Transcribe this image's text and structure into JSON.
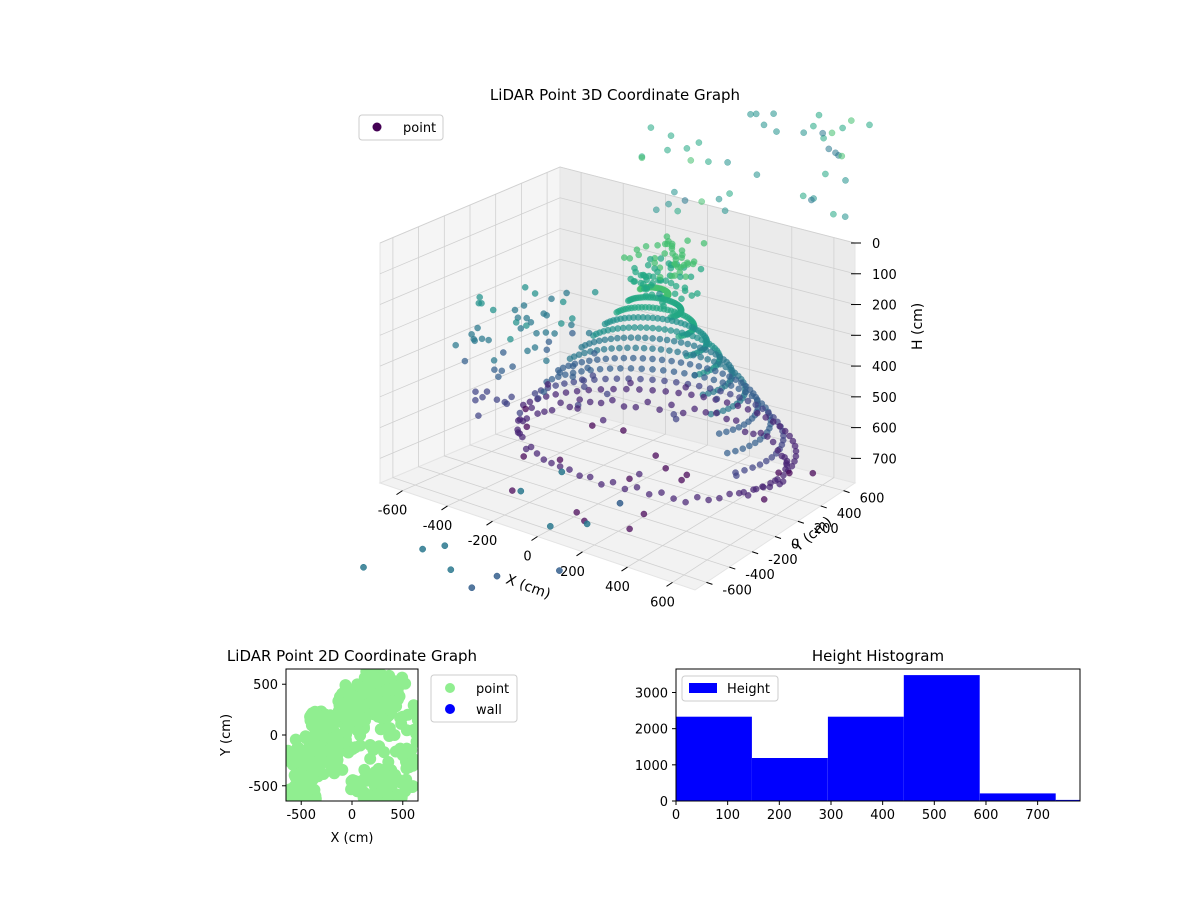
{
  "chart_data": [
    {
      "type": "scatter",
      "projection": "3d",
      "title": "LiDAR Point 3D Coordinate Graph",
      "xlabel": "X (cm)",
      "ylabel": "Y (cm)",
      "zlabel": "H (cm)",
      "xlim": [
        -700,
        700
      ],
      "ylim": [
        -700,
        700
      ],
      "zlim": [
        0,
        780
      ],
      "z_inverted": true,
      "xticks": [
        -600,
        -400,
        -200,
        0,
        200,
        400,
        600
      ],
      "yticks": [
        -600,
        -400,
        -200,
        0,
        200,
        400,
        600
      ],
      "zticks": [
        0,
        100,
        200,
        300,
        400,
        500,
        600,
        700
      ],
      "grid": true,
      "colormap": "viridis",
      "legend": {
        "position": "top-left",
        "entries": [
          {
            "label": "point",
            "color": "#440154"
          }
        ]
      }
    },
    {
      "type": "scatter",
      "title": "LiDAR Point 2D Coordinate Graph",
      "xlabel": "X (cm)",
      "ylabel": "Y (cm)",
      "xlim": [
        -650,
        650
      ],
      "ylim": [
        -650,
        650
      ],
      "xticks": [
        -500,
        0,
        500
      ],
      "yticks": [
        -500,
        0,
        500
      ],
      "legend": {
        "position": "outside-right",
        "entries": [
          {
            "label": "point",
            "color": "#90ee90"
          },
          {
            "label": "wall",
            "color": "#0000ff"
          }
        ]
      }
    },
    {
      "type": "bar",
      "title": "Height Histogram",
      "bins": [
        0,
        147,
        294,
        441,
        588,
        735,
        782
      ],
      "counts": [
        2330,
        1190,
        2330,
        3480,
        210,
        30
      ],
      "xlim": [
        0,
        782
      ],
      "ylim": [
        0,
        3650
      ],
      "xticks": [
        0,
        100,
        200,
        300,
        400,
        500,
        600,
        700
      ],
      "yticks": [
        0,
        1000,
        2000,
        3000
      ],
      "color": "#0000ff",
      "legend": {
        "position": "top-left",
        "entries": [
          {
            "label": "Height",
            "color": "#0000ff"
          }
        ]
      }
    }
  ]
}
